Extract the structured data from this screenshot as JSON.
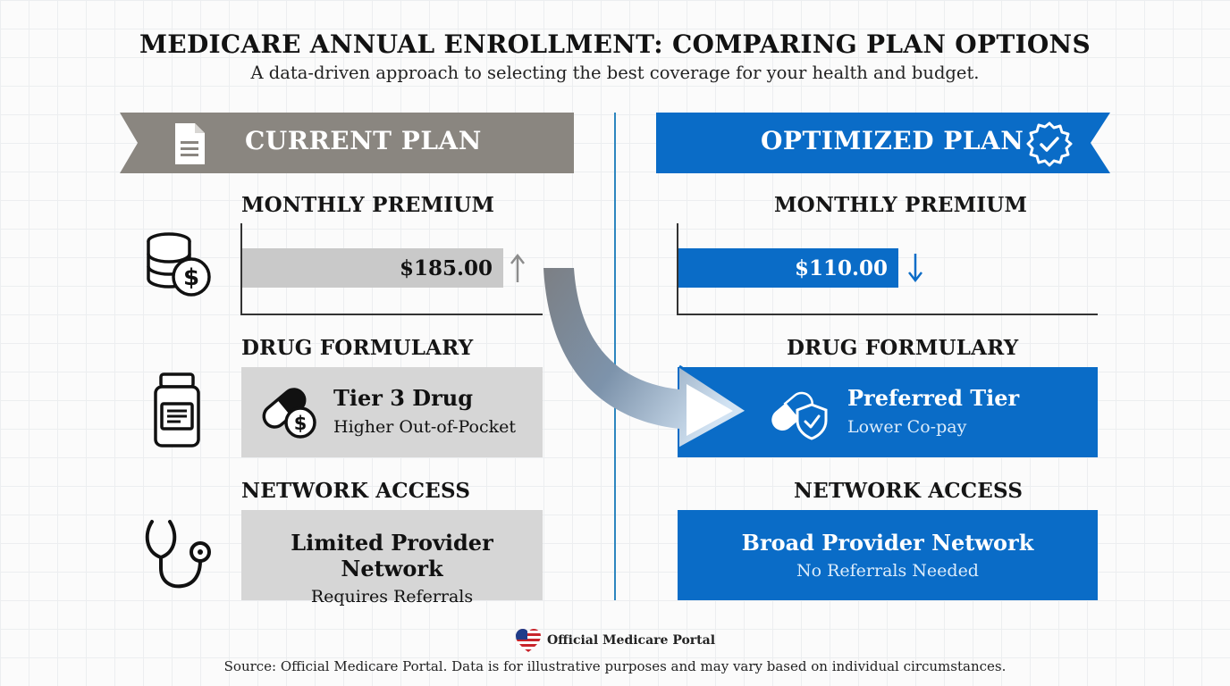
{
  "header": {
    "title": "MEDICARE ANNUAL ENROLLMENT: COMPARING PLAN OPTIONS",
    "subtitle": "A data-driven approach to selecting the best coverage for your health and budget."
  },
  "current_plan": {
    "label": "CURRENT PLAN",
    "icon": "document-icon",
    "premium": {
      "section_label": "MONTHLY PREMIUM",
      "value": "$185.00",
      "trend": "up"
    },
    "formulary": {
      "section_label": "DRUG FORMULARY",
      "title": "Tier 3 Drug",
      "subtitle": "Higher Out-of-Pocket"
    },
    "network": {
      "section_label": "NETWORK ACCESS",
      "title": "Limited Provider Network",
      "subtitle": "Requires Referrals"
    }
  },
  "optimized_plan": {
    "label": "OPTIMIZED PLAN",
    "icon": "gear-check-icon",
    "premium": {
      "section_label": "MONTHLY PREMIUM",
      "value": "$110.00",
      "trend": "down"
    },
    "formulary": {
      "section_label": "DRUG FORMULARY",
      "title": "Preferred Tier",
      "subtitle": "Lower Co-pay"
    },
    "network": {
      "section_label": "NETWORK ACCESS",
      "title": "Broad Provider Network",
      "subtitle": "No Referrals Needed"
    }
  },
  "footer": {
    "brand": "Official Medicare Portal",
    "source": "Source: Official Medicare Portal. Data is for illustrative purposes and may vary based on individual circumstances."
  },
  "colors": {
    "current_gray": "#8a8680",
    "optimized_blue": "#0a6cc7",
    "divider_blue": "#2d86bf"
  }
}
